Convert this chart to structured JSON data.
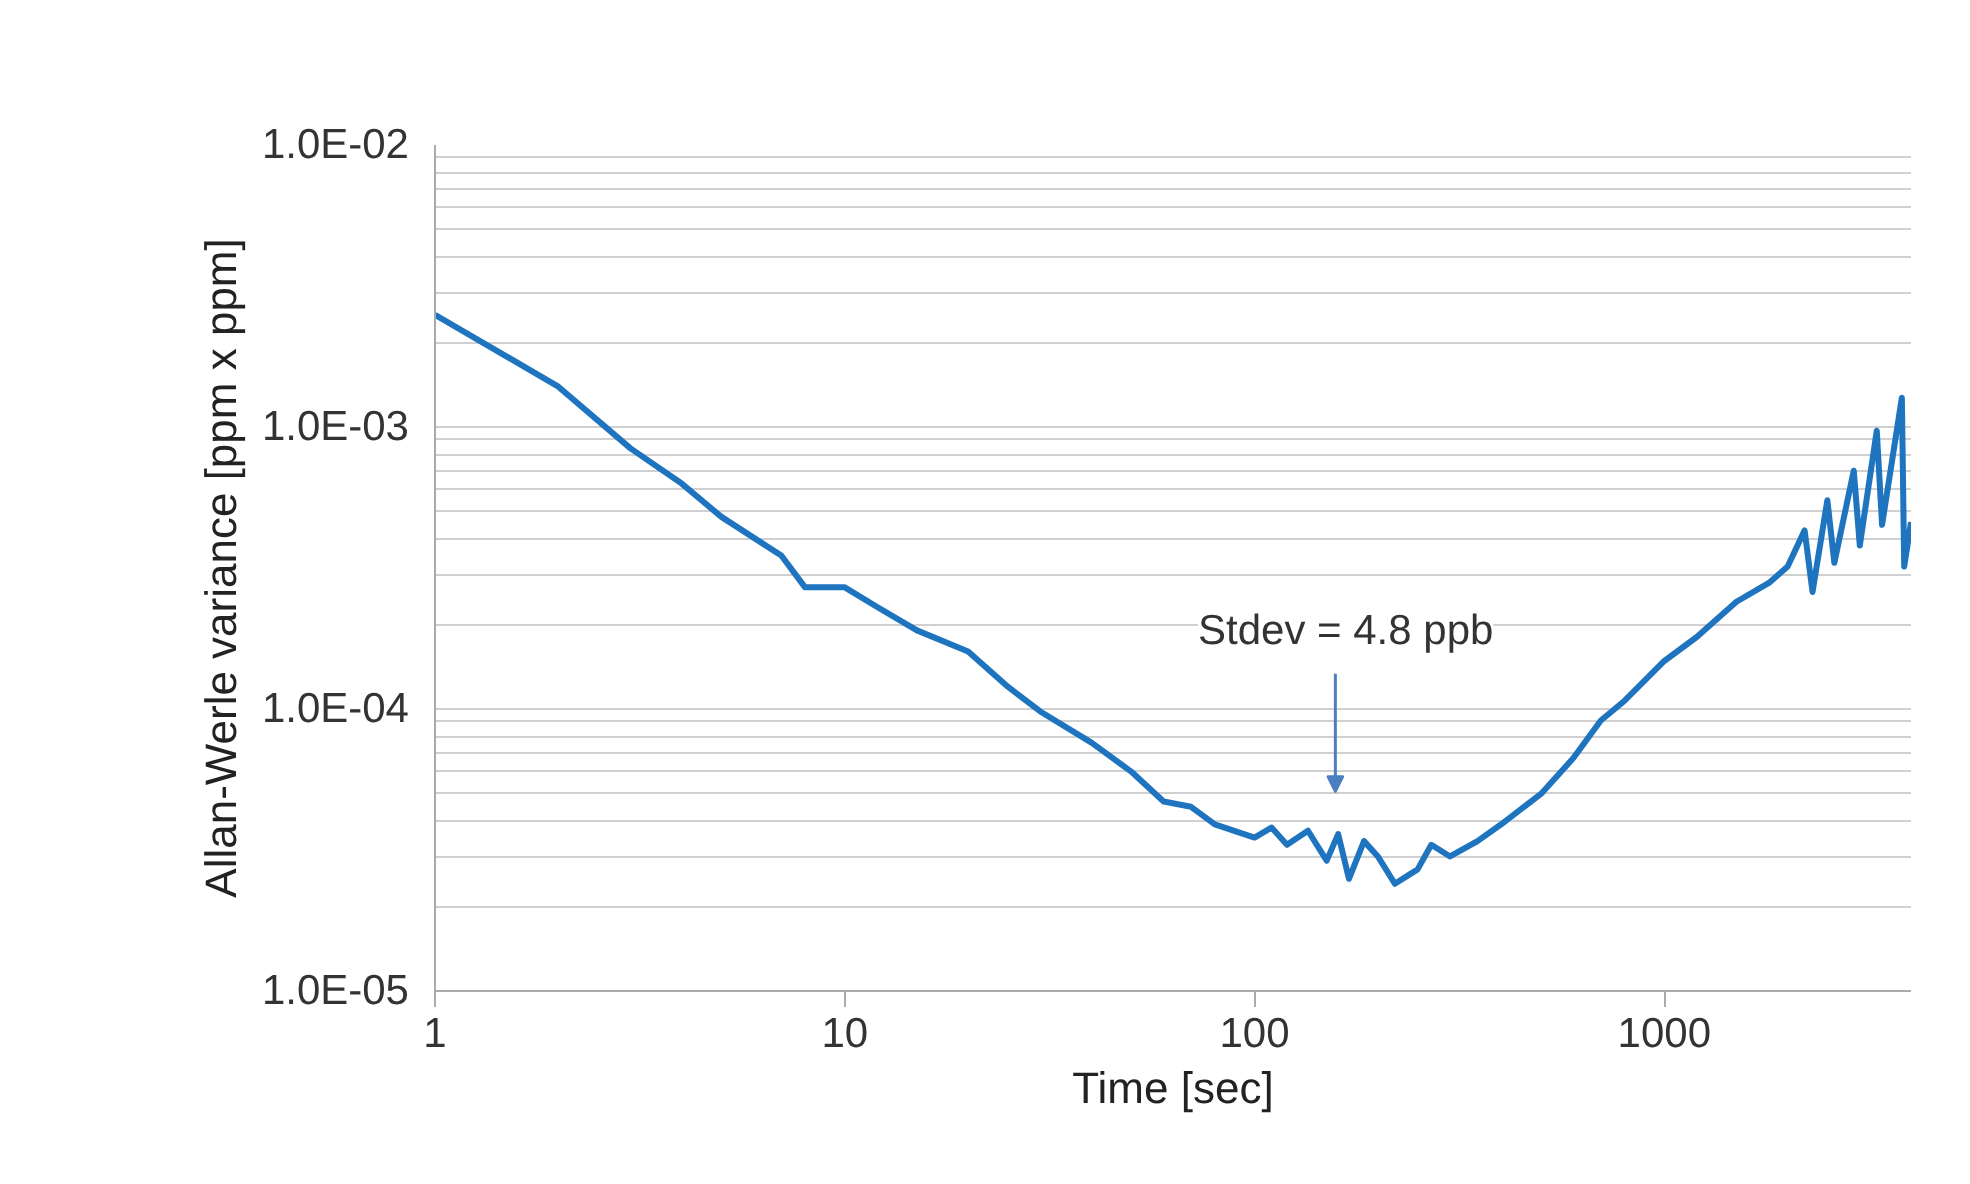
{
  "chart_data": {
    "type": "line",
    "xlabel": "Time [sec]",
    "ylabel": "Allan-Werle variance [ppm x ppm]",
    "x": [
      1,
      2,
      3,
      4,
      5,
      7,
      8,
      10,
      12,
      15,
      20,
      25,
      30,
      40,
      50,
      60,
      70,
      80,
      100,
      110,
      120,
      135,
      150,
      160,
      170,
      185,
      200,
      220,
      250,
      270,
      300,
      350,
      400,
      500,
      600,
      700,
      800,
      1000,
      1200,
      1500,
      1800,
      2000,
      2200,
      2300,
      2500,
      2600,
      2900,
      3000,
      3300,
      3400,
      3800,
      3850,
      4000
    ],
    "series": [
      {
        "color": "#1f74c0",
        "values": [
          0.0025,
          0.00139,
          0.00084,
          0.00063,
          0.00048,
          0.00035,
          0.00027,
          0.00027,
          0.00023,
          0.00019,
          0.00016,
          0.00012,
          9.8e-05,
          7.6e-05,
          6e-05,
          4.7e-05,
          4.5e-05,
          3.9e-05,
          3.5e-05,
          3.8e-05,
          3.3e-05,
          3.7e-05,
          2.9e-05,
          3.6e-05,
          2.5e-05,
          3.4e-05,
          3e-05,
          2.4e-05,
          2.7e-05,
          3.3e-05,
          3e-05,
          3.4e-05,
          3.9e-05,
          5e-05,
          6.7e-05,
          9.1e-05,
          0.000107,
          0.000148,
          0.00018,
          0.00024,
          0.00028,
          0.00032,
          0.00043,
          0.00026,
          0.00055,
          0.00033,
          0.0007,
          0.00038,
          0.00097,
          0.00045,
          0.00127,
          0.00032,
          0.00046
        ]
      }
    ],
    "log": "xy",
    "xlim": [
      1,
      4000
    ],
    "xticks": [
      1,
      10,
      100,
      1000
    ],
    "ylim": [
      1e-05,
      0.01
    ],
    "yticks": [
      {
        "value": 1e-05,
        "label": "1.0E-05"
      },
      {
        "value": 2e-05,
        "label": null
      },
      {
        "value": 3e-05,
        "label": null
      },
      {
        "value": 4e-05,
        "label": null
      },
      {
        "value": 5e-05,
        "label": null
      },
      {
        "value": 6e-05,
        "label": null
      },
      {
        "value": 7e-05,
        "label": null
      },
      {
        "value": 8e-05,
        "label": null
      },
      {
        "value": 9e-05,
        "label": null
      },
      {
        "value": 0.0001,
        "label": "1.0E-04"
      },
      {
        "value": 0.0002,
        "label": null
      },
      {
        "value": 0.0003,
        "label": null
      },
      {
        "value": 0.0004,
        "label": null
      },
      {
        "value": 0.0005,
        "label": null
      },
      {
        "value": 0.0006,
        "label": null
      },
      {
        "value": 0.0007,
        "label": null
      },
      {
        "value": 0.0008,
        "label": null
      },
      {
        "value": 0.0009,
        "label": null
      },
      {
        "value": 0.001,
        "label": "1.0E-03"
      },
      {
        "value": 0.002,
        "label": null
      },
      {
        "value": 0.003,
        "label": null
      },
      {
        "value": 0.004,
        "label": null
      },
      {
        "value": 0.005,
        "label": null
      },
      {
        "value": 0.006,
        "label": null
      },
      {
        "value": 0.007,
        "label": null
      },
      {
        "value": 0.008,
        "label": null
      },
      {
        "value": 0.009,
        "label": null
      },
      {
        "value": 0.01,
        "label": "1.0E-02"
      }
    ],
    "grid": "y",
    "marker": "none",
    "line_style": "solid",
    "annotations": [
      "Stdev = 4.8 ppb"
    ]
  }
}
